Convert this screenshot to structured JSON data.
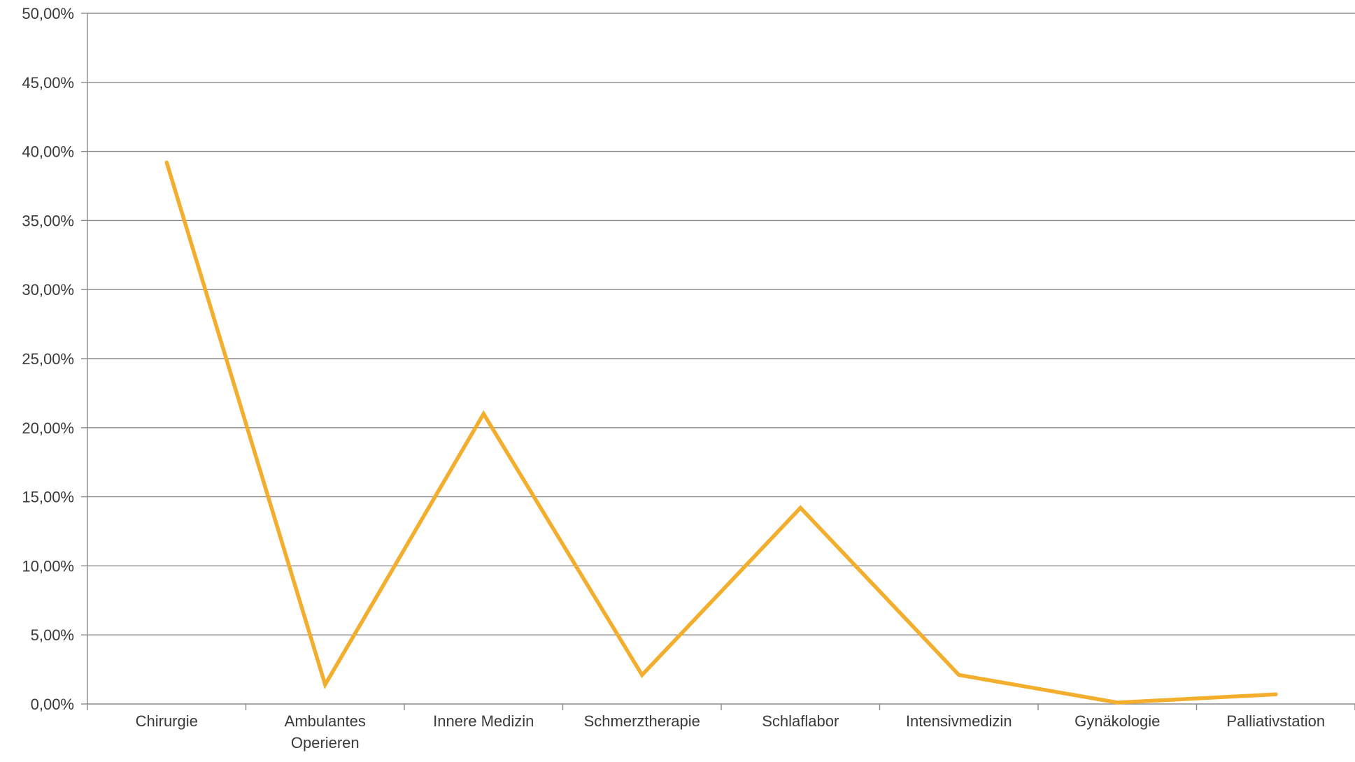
{
  "chart_data": {
    "type": "line",
    "title": "",
    "xlabel": "",
    "ylabel": "",
    "categories": [
      "Chirurgie",
      "Ambulantes Operieren",
      "Innere Medizin",
      "Schmerztherapie",
      "Schlaflabor",
      "Intensivmedizin",
      "Gynäkologie",
      "Palliativstation"
    ],
    "category_label_lines": [
      [
        "Chirurgie"
      ],
      [
        "Ambulantes",
        "Operieren"
      ],
      [
        "Innere Medizin"
      ],
      [
        "Schmerztherapie"
      ],
      [
        "Schlaflabor"
      ],
      [
        "Intensivmedizin"
      ],
      [
        "Gynäkologie"
      ],
      [
        "Palliativstation"
      ]
    ],
    "series": [
      {
        "values": [
          39.2,
          1.4,
          21.0,
          2.1,
          14.2,
          2.1,
          0.1,
          0.7
        ],
        "color": "#F2AE2C"
      }
    ],
    "ylim": [
      0,
      50
    ],
    "y_ticks": [
      0,
      5,
      10,
      15,
      20,
      25,
      30,
      35,
      40,
      45,
      50
    ],
    "y_tick_labels": [
      "0,00%",
      "5,00%",
      "10,00%",
      "15,00%",
      "20,00%",
      "25,00%",
      "30,00%",
      "35,00%",
      "40,00%",
      "45,00%",
      "50,00%"
    ],
    "grid": true,
    "legend": "none"
  }
}
